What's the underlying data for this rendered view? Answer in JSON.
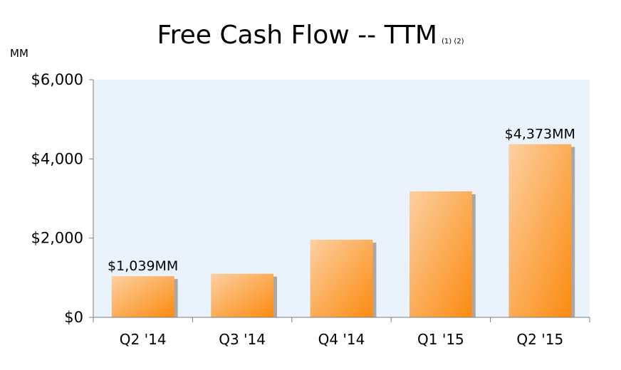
{
  "chart_data": {
    "type": "bar",
    "title": "Free Cash Flow -- TTM",
    "title_note": "(1) (2)",
    "unit_label": "MM",
    "categories": [
      "Q2 '14",
      "Q3 '14",
      "Q4 '14",
      "Q1 '15",
      "Q2 '15"
    ],
    "values": [
      1039,
      1100,
      1960,
      3180,
      4373
    ],
    "data_labels": [
      "$1,039MM",
      "",
      "",
      "",
      "$4,373MM"
    ],
    "ylim": [
      0,
      6000
    ],
    "yticks": [
      0,
      2000,
      4000,
      6000
    ],
    "ytick_labels": [
      "$0",
      "$2,000",
      "$4,000",
      "$6,000"
    ],
    "xlabel": "",
    "ylabel": "",
    "grid": false,
    "legend": "none",
    "colors": {
      "bar_light": "#FDD0A0",
      "bar_dark": "#FB8A10",
      "plot_background": "#EAF2FC",
      "bar_shadow": "#A8A8A8"
    }
  }
}
